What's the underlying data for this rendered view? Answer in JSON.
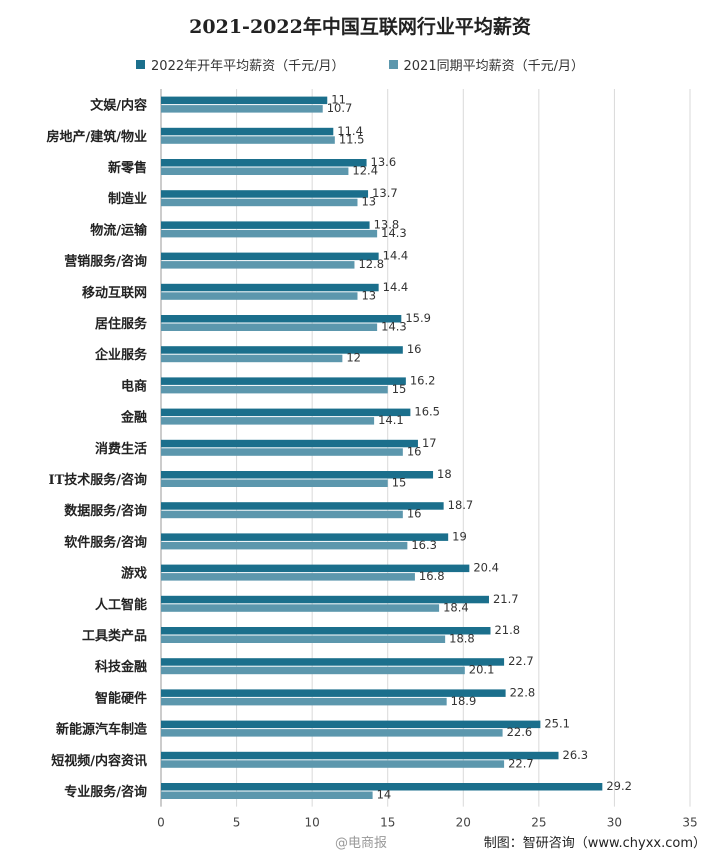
{
  "chart_data": {
    "type": "bar",
    "title": "2021-2022年中国互联网行业平均薪资",
    "categories": [
      "文娱/内容",
      "房地产/建筑/物业",
      "新零售",
      "制造业",
      "物流/运输",
      "营销服务/咨询",
      "移动互联网",
      "居住服务",
      "企业服务",
      "电商",
      "金融",
      "消费生活",
      "IT技术服务/咨询",
      "数据服务/咨询",
      "软件服务/咨询",
      "游戏",
      "人工智能",
      "工具类产品",
      "科技金融",
      "智能硬件",
      "新能源汽车制造",
      "短视频/内容资讯",
      "专业服务/咨询"
    ],
    "series": [
      {
        "name": "2022年开年平均薪资（千元/月）",
        "color": "#1b6f8c",
        "values": [
          11,
          11.4,
          13.6,
          13.7,
          13.8,
          14.4,
          14.4,
          15.9,
          16,
          16.2,
          16.5,
          17,
          18,
          18.7,
          19,
          20.4,
          21.7,
          21.8,
          22.7,
          22.8,
          25.1,
          26.3,
          29.2
        ]
      },
      {
        "name": "2021同期平均薪资（千元/月）",
        "color": "#5c97ad",
        "values": [
          10.7,
          11.5,
          12.4,
          13,
          14.3,
          12.8,
          13,
          14.3,
          12,
          15,
          14.1,
          16,
          15,
          16,
          16.3,
          16.8,
          18.4,
          18.8,
          20.1,
          18.9,
          22.6,
          22.7,
          14
        ]
      }
    ],
    "xlim": [
      0,
      35
    ],
    "xticks": [
      0,
      5,
      10,
      15,
      20,
      25,
      30,
      35
    ],
    "grid": true,
    "legend": "top"
  },
  "footer": {
    "source": "制图：智研咨询（www.chyxx.com）",
    "watermark": "@电商报"
  }
}
